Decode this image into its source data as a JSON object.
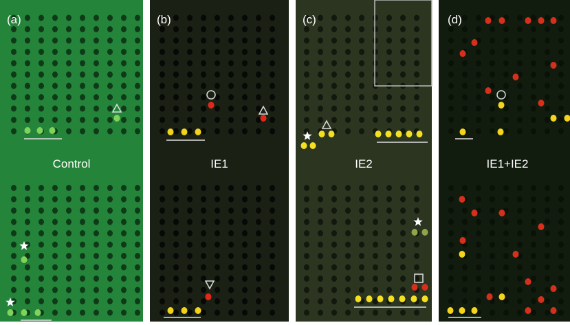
{
  "panels": [
    {
      "label": "(a)",
      "caption": "Control"
    },
    {
      "label": "(b)",
      "caption": "IE1"
    },
    {
      "label": "(c)",
      "caption": "IE2"
    },
    {
      "label": "(d)",
      "caption": "IE1+IE2"
    }
  ]
}
